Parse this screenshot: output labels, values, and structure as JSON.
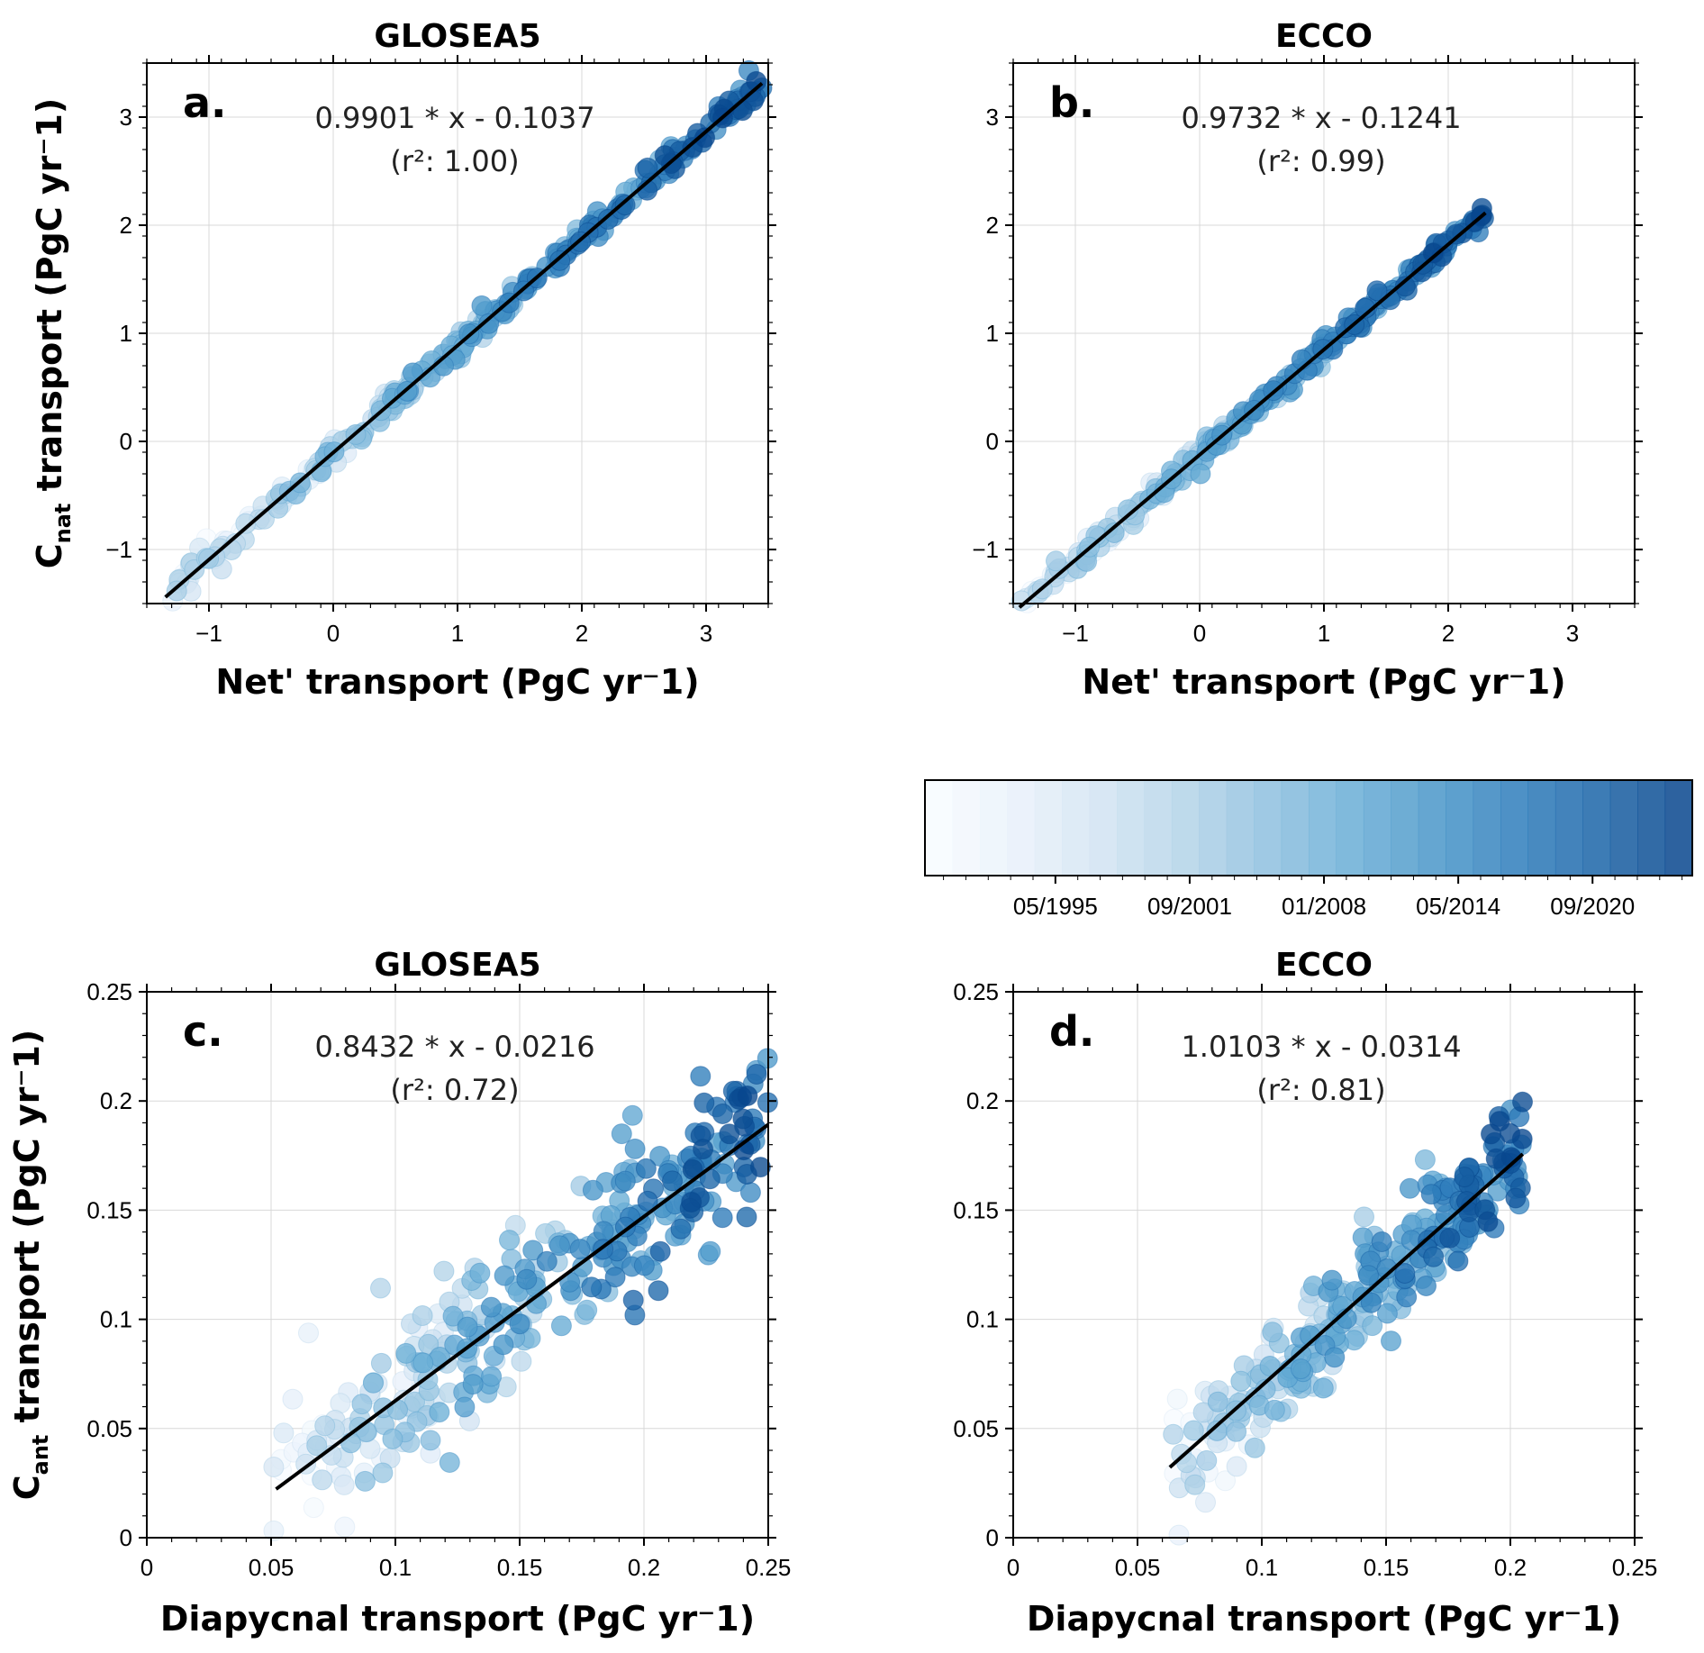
{
  "chart_data": [
    {
      "panel": "a.",
      "type": "scatter",
      "title": "GLOSEA5",
      "xlabel": "Net' transport (PgC yr⁻1)",
      "ylabel_main": "C",
      "ylabel_sub": "nat",
      "ylabel_rest": " transport (PgC yr⁻1)",
      "annotation": "0.9901 * x - 0.1037",
      "r2_label": "(r²: 1.00)",
      "xlim": [
        -1.5,
        3.5
      ],
      "ylim": [
        -1.5,
        3.5
      ],
      "xticks": [
        -1,
        0,
        1,
        2,
        3
      ],
      "yticks": [
        -1,
        0,
        1,
        2,
        3
      ],
      "fit": {
        "slope": 0.9901,
        "intercept": -0.1037,
        "x": [
          -1.35,
          3.45
        ]
      },
      "points": {
        "n": 300,
        "x_range": [
          -1.35,
          3.45
        ],
        "noise": 0.06,
        "seed": 11
      }
    },
    {
      "panel": "b.",
      "type": "scatter",
      "title": "ECCO",
      "xlabel": "Net' transport (PgC yr⁻1)",
      "ylabel_main": "",
      "ylabel_sub": "",
      "ylabel_rest": "",
      "annotation": "0.9732 * x - 0.1241",
      "r2_label": "(r²: 0.99)",
      "xlim": [
        -1.5,
        3.5
      ],
      "ylim": [
        -1.5,
        3.5
      ],
      "xticks": [
        -1,
        0,
        1,
        2,
        3
      ],
      "yticks": [
        -1,
        0,
        1,
        2,
        3
      ],
      "fit": {
        "slope": 0.9732,
        "intercept": -0.1241,
        "x": [
          -1.45,
          2.3
        ]
      },
      "points": {
        "n": 300,
        "x_range": [
          -1.45,
          2.3
        ],
        "noise": 0.05,
        "seed": 23
      }
    },
    {
      "panel": "c.",
      "type": "scatter",
      "title": "GLOSEA5",
      "xlabel": "Diapycnal transport (PgC yr⁻1)",
      "ylabel_main": "C",
      "ylabel_sub": "ant",
      "ylabel_rest": " transport (PgC yr⁻1)",
      "annotation": "0.8432 * x - 0.0216",
      "r2_label": "(r²: 0.72)",
      "xlim": [
        0,
        0.25
      ],
      "ylim": [
        0,
        0.25
      ],
      "xticks": [
        0,
        0.05,
        0.1,
        0.15,
        0.2,
        0.25
      ],
      "yticks": [
        0,
        0.05,
        0.1,
        0.15,
        0.2,
        0.25
      ],
      "fit": {
        "slope": 0.8432,
        "intercept": -0.0216,
        "x": [
          0.052,
          0.25
        ]
      },
      "points": {
        "n": 320,
        "x_range": [
          0.05,
          0.25
        ],
        "noise": 0.018,
        "seed": 37
      }
    },
    {
      "panel": "d.",
      "type": "scatter",
      "title": "ECCO",
      "xlabel": "Diapycnal transport (PgC yr⁻1)",
      "ylabel_main": "",
      "ylabel_sub": "",
      "ylabel_rest": "",
      "annotation": "1.0103 * x - 0.0314",
      "r2_label": "(r²: 0.81)",
      "xlim": [
        0,
        0.25
      ],
      "ylim": [
        0,
        0.25
      ],
      "xticks": [
        0,
        0.05,
        0.1,
        0.15,
        0.2,
        0.25
      ],
      "yticks": [
        0,
        0.05,
        0.1,
        0.15,
        0.2,
        0.25
      ],
      "fit": {
        "slope": 1.0103,
        "intercept": -0.0314,
        "x": [
          0.063,
          0.205
        ]
      },
      "points": {
        "n": 300,
        "x_range": [
          0.063,
          0.205
        ],
        "noise": 0.013,
        "seed": 53
      }
    }
  ],
  "colorbar": {
    "labels": [
      "05/1995",
      "09/2001",
      "01/2008",
      "05/2014",
      "09/2020"
    ],
    "colors": [
      "#f7fbff",
      "#e7f0fa",
      "#d1e3f2",
      "#b3d3e8",
      "#8ec0df",
      "#6aaed6",
      "#4a97c9",
      "#2f7ebc",
      "#1b65a8",
      "#08478e"
    ],
    "steps": 28
  },
  "style": {
    "point_dark": "#08478e",
    "point_light": "#eef4fb",
    "fit_line": "#000000"
  }
}
